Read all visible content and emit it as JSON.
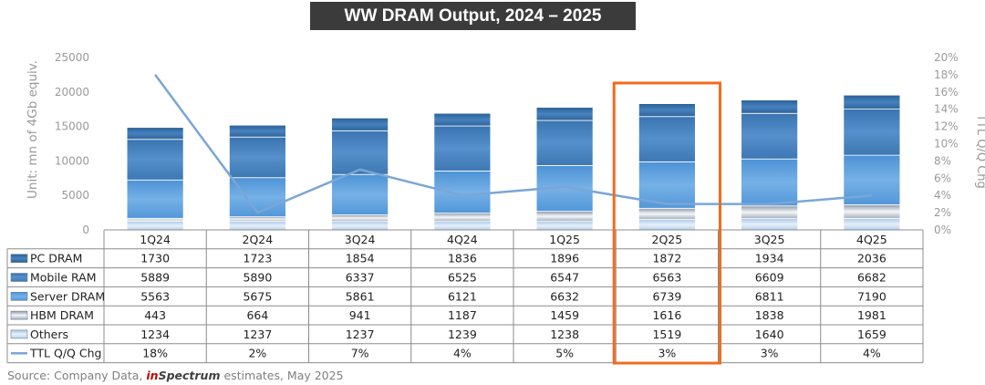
{
  "chart_data": {
    "type": "bar",
    "title": "WW DRAM Output, 2024 – 2025",
    "categories": [
      "1Q24",
      "2Q24",
      "3Q24",
      "4Q24",
      "1Q25",
      "2Q25",
      "3Q25",
      "4Q25"
    ],
    "stacked": true,
    "ylabel": "Unit: mn of 4Gb equiv.",
    "ylim": [
      0,
      25000
    ],
    "yticks": [
      "0",
      "5000",
      "10000",
      "15000",
      "20000",
      "25000"
    ],
    "y2label": "TTL Q/Q Chg",
    "y2lim": [
      0,
      20
    ],
    "y2ticks": [
      "0%",
      "2%",
      "4%",
      "6%",
      "8%",
      "10%",
      "12%",
      "14%",
      "16%",
      "18%",
      "20%"
    ],
    "series": [
      {
        "name": "PC DRAM",
        "values": [
          1730,
          1723,
          1854,
          1836,
          1896,
          1872,
          1934,
          2036
        ],
        "labels": [
          "1730",
          "1723",
          "1854",
          "1836",
          "1896",
          "1872",
          "1934",
          "2036"
        ],
        "color": "#3f78b0"
      },
      {
        "name": "Mobile RAM",
        "values": [
          5889,
          5890,
          6337,
          6525,
          6547,
          6563,
          6609,
          6682
        ],
        "labels": [
          "5889",
          "5890",
          "6337",
          "6525",
          "6547",
          "6563",
          "6609",
          "6682"
        ],
        "color": "#4f88c4"
      },
      {
        "name": "Server DRAM",
        "values": [
          5563,
          5675,
          5861,
          6121,
          6632,
          6739,
          6811,
          7190
        ],
        "labels": [
          "5563",
          "5675",
          "5861",
          "6121",
          "6632",
          "6739",
          "6811",
          "7190"
        ],
        "color": "#66a3de"
      },
      {
        "name": "HBM DRAM",
        "values": [
          443,
          664,
          941,
          1187,
          1459,
          1616,
          1838,
          1981
        ],
        "labels": [
          "443",
          "664",
          "941",
          "1187",
          "1459",
          "1616",
          "1838",
          "1981"
        ],
        "color": "#c9cfd8"
      },
      {
        "name": "Others",
        "values": [
          1234,
          1237,
          1237,
          1239,
          1238,
          1519,
          1640,
          1659
        ],
        "labels": [
          "1234",
          "1237",
          "1237",
          "1239",
          "1238",
          "1519",
          "1640",
          "1659"
        ],
        "color": "#c8ddf2"
      },
      {
        "name": "TTL Q/Q Chg",
        "type": "line",
        "axis": "right",
        "values": [
          18,
          2,
          7,
          4,
          5,
          3,
          3,
          4
        ],
        "labels": [
          "18%",
          "2%",
          "7%",
          "4%",
          "5%",
          "3%",
          "3%",
          "4%"
        ],
        "color": "#7aa6d6"
      }
    ],
    "highlight_category": "2Q25",
    "highlight_color": "#f26b1d",
    "legend": "table-below",
    "grid": false
  },
  "footer": {
    "source_prefix": "Source: Company Data,",
    "brand_in": "in",
    "brand_rest": "Spectrum",
    "source_suffix": "estimates, May 2025"
  }
}
